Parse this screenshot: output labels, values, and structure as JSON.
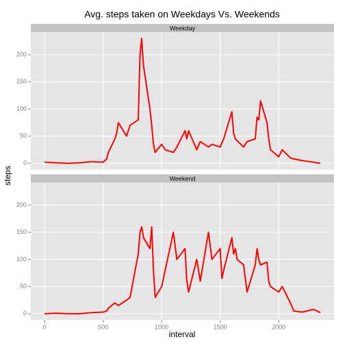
{
  "chart_data": {
    "type": "line",
    "title": "Avg. steps taken on Weekdays Vs. Weekends",
    "xlabel": "interval",
    "ylabel": "steps",
    "xlim": [
      -118,
      2473
    ],
    "xticks": [
      0,
      500,
      1000,
      1500,
      2000
    ],
    "ylim": [
      -11.5,
      241.6
    ],
    "yticks": [
      0,
      50,
      100,
      150,
      200
    ],
    "grid": true,
    "facets": true,
    "series": [
      {
        "name": "Weekday",
        "color": "#ff0000",
        "x": [
          0,
          100,
          200,
          300,
          400,
          500,
          530,
          545,
          600,
          615,
          630,
          700,
          715,
          730,
          800,
          815,
          830,
          835,
          845,
          900,
          915,
          930,
          945,
          1000,
          1030,
          1100,
          1130,
          1200,
          1215,
          1230,
          1300,
          1330,
          1400,
          1430,
          1500,
          1530,
          1600,
          1615,
          1630,
          1700,
          1730,
          1800,
          1815,
          1830,
          1845,
          1900,
          1915,
          1930,
          2000,
          2030,
          2100,
          2130,
          2200,
          2300,
          2355
        ],
        "values": [
          2,
          1,
          0,
          1,
          3,
          2,
          8,
          20,
          45,
          55,
          75,
          50,
          60,
          70,
          80,
          200,
          230,
          210,
          180,
          100,
          70,
          35,
          20,
          35,
          25,
          20,
          30,
          60,
          45,
          60,
          25,
          40,
          30,
          35,
          30,
          45,
          95,
          55,
          45,
          30,
          40,
          45,
          85,
          80,
          115,
          75,
          45,
          25,
          12,
          25,
          10,
          8,
          5,
          2,
          0
        ]
      },
      {
        "name": "Weekend",
        "color": "#ff0000",
        "x": [
          0,
          100,
          200,
          300,
          400,
          500,
          530,
          545,
          600,
          630,
          700,
          730,
          800,
          815,
          830,
          845,
          900,
          915,
          930,
          945,
          1000,
          1030,
          1100,
          1130,
          1200,
          1215,
          1230,
          1300,
          1330,
          1400,
          1430,
          1500,
          1515,
          1530,
          1600,
          1615,
          1630,
          1645,
          1700,
          1730,
          1800,
          1815,
          1830,
          1845,
          1900,
          1915,
          1930,
          2000,
          2030,
          2100,
          2130,
          2200,
          2300,
          2355
        ],
        "values": [
          0,
          1,
          0,
          0,
          2,
          3,
          5,
          10,
          20,
          15,
          25,
          30,
          110,
          150,
          160,
          140,
          120,
          160,
          80,
          30,
          50,
          80,
          150,
          100,
          120,
          60,
          40,
          100,
          60,
          150,
          100,
          120,
          65,
          80,
          140,
          110,
          120,
          100,
          90,
          40,
          90,
          120,
          100,
          90,
          95,
          60,
          50,
          40,
          50,
          20,
          5,
          3,
          8,
          2
        ]
      }
    ]
  }
}
